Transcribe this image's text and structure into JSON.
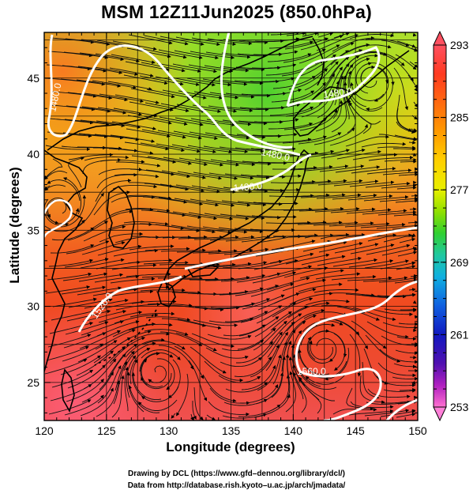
{
  "title": "MSM 12Z11Jun2025 (850.0hPa)",
  "xlabel": "Longitude (degrees)",
  "ylabel": "Latitude  (degrees)",
  "credits": [
    "Drawing by DCL (https://www.gfd–dennou.org/library/dcl/)",
    "Data from http://database.rish.kyoto–u.ac.jp/arch/jmadata/"
  ],
  "x_ticks": [
    "120",
    "125",
    "130",
    "135",
    "140",
    "145",
    "150"
  ],
  "y_ticks": [
    "25",
    "30",
    "35",
    "40",
    "45"
  ],
  "colorbar": {
    "ticks": [
      "293",
      "285",
      "277",
      "269",
      "261",
      "253"
    ],
    "colors": [
      "#ff6070",
      "#ff4020",
      "#ff7a10",
      "#ffaa00",
      "#ffd000",
      "#f0f000",
      "#a8e800",
      "#40d820",
      "#20c8a0",
      "#10a8e8",
      "#1050e0",
      "#1010b0",
      "#6010c0",
      "#c020c0",
      "#ff80d0"
    ]
  },
  "contour_labels": [
    "1480.0",
    "1480.0",
    "1480.0",
    "1480.0",
    "1520.0",
    "1560.0"
  ],
  "map": {
    "lon_range": [
      120,
      150
    ],
    "lat_range": [
      22.5,
      48
    ],
    "projection": "equirectangular",
    "field": "temperature (K) color shading with geopotential height contours and wind streamlines"
  }
}
